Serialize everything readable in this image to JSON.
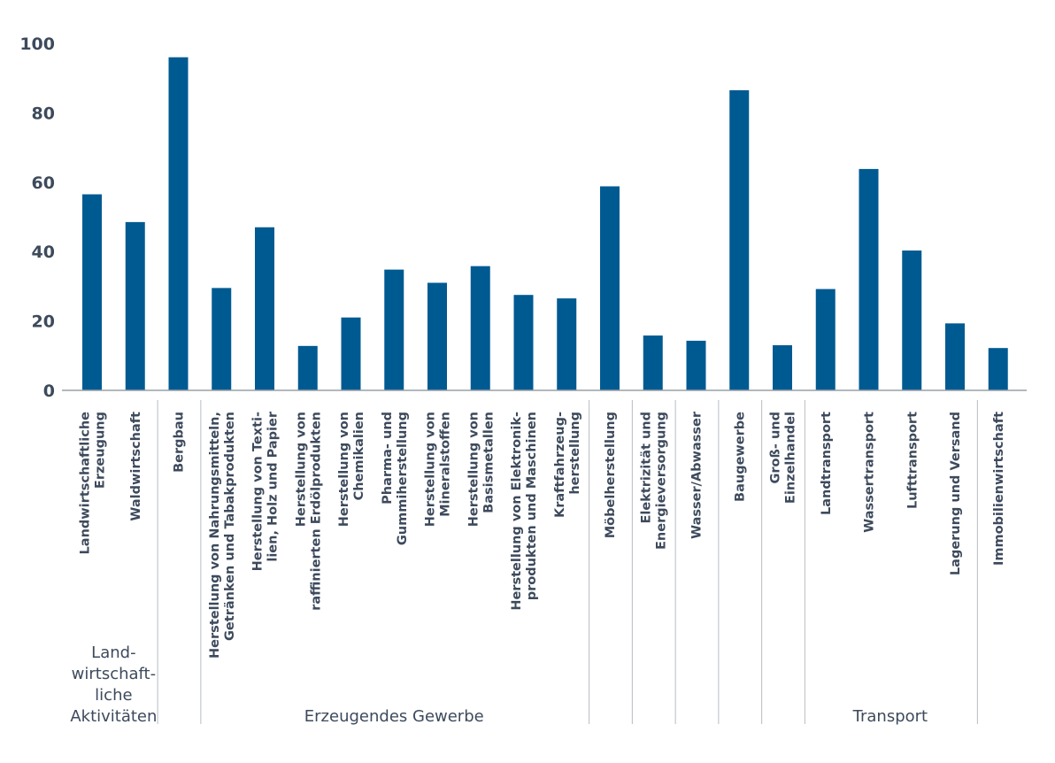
{
  "chart_data": {
    "type": "bar",
    "ylim": [
      0,
      100
    ],
    "yticks": [
      "0",
      "20",
      "40",
      "60",
      "80",
      "100"
    ],
    "grid": false,
    "categories": [
      "Landwirtschaftliche Erzeugung",
      "Waldwirtschaft",
      "Bergbau",
      "Herstellung von Nahrungsmitteln, Getränken und Tabakprodukten",
      "Herstellung von Textilien, Holz und Papier",
      "Herstellung von raffinierten Erdölprodukten",
      "Herstellung von Chemikalien",
      "Pharma- und Gummiherstellung",
      "Herstellung von Mineralstoffen",
      "Herstellung von Basismetallen",
      "Herstellung von Elektronikprodukten und Maschinen",
      "Kraftfahrzeugherstellung",
      "Möbelherstellung",
      "Elektrizität und Energieversorgung",
      "Wasser/Abwasser",
      "Baugewerbe",
      "Groß- und Einzelhandel",
      "Landtransport",
      "Wassertransport",
      "Lufttransport",
      "Lagerung und Versand",
      "Immobilienwirtschaft"
    ],
    "category_label_lines": [
      [
        "Landwirtschaftliche",
        "Erzeugung"
      ],
      [
        "Waldwirtschaft"
      ],
      [
        "Bergbau"
      ],
      [
        "Herstellung von Nahrungsmitteln,",
        "Getränken und Tabakprodukten"
      ],
      [
        "Herstellung von Texti-",
        "lien, Holz und Papier"
      ],
      [
        "Herstellung von",
        "raffinierten Erdölprodukten"
      ],
      [
        "Herstellung von",
        "Chemikalien"
      ],
      [
        "Pharma- und",
        "Gummiherstellung"
      ],
      [
        "Herstellung von",
        "Mineralstoffen"
      ],
      [
        "Herstellung von",
        "Basismetallen"
      ],
      [
        "Herstellung von Elektronik-",
        "produkten und Maschinen"
      ],
      [
        "Kraftfahrzeug-",
        "herstellung"
      ],
      [
        "Möbelherstellung"
      ],
      [
        "Elektrizität und",
        "Energieversorgung"
      ],
      [
        "Wasser/Abwasser"
      ],
      [
        "Baugewerbe"
      ],
      [
        "Groß- und",
        "Einzelhandel"
      ],
      [
        "Landtransport"
      ],
      [
        "Wassertransport"
      ],
      [
        "Lufttransport"
      ],
      [
        "Lagerung und Versand"
      ],
      [
        "Immobilienwirtschaft"
      ]
    ],
    "values": [
      56.5,
      48.5,
      96,
      29.5,
      47,
      12.8,
      21,
      34.8,
      31,
      35.8,
      27.5,
      26.5,
      58.8,
      15.8,
      14.3,
      86.5,
      13,
      29.2,
      63.8,
      40.3,
      19.3,
      12.2
    ],
    "color": "#005a92",
    "groups": [
      {
        "label_lines": [
          "Land-",
          "wirtschaft-",
          "liche",
          "Aktivitäten"
        ],
        "start": 0,
        "end": 1
      },
      {
        "label_lines": [],
        "start": 2,
        "end": 2
      },
      {
        "label_lines": [
          "Erzeugendes Gewerbe"
        ],
        "start": 3,
        "end": 11
      },
      {
        "label_lines": [],
        "start": 12,
        "end": 12
      },
      {
        "label_lines": [],
        "start": 13,
        "end": 13
      },
      {
        "label_lines": [],
        "start": 14,
        "end": 14
      },
      {
        "label_lines": [],
        "start": 15,
        "end": 15
      },
      {
        "label_lines": [],
        "start": 16,
        "end": 16
      },
      {
        "label_lines": [
          "Transport"
        ],
        "start": 17,
        "end": 20
      },
      {
        "label_lines": [],
        "start": 21,
        "end": 21
      }
    ]
  }
}
